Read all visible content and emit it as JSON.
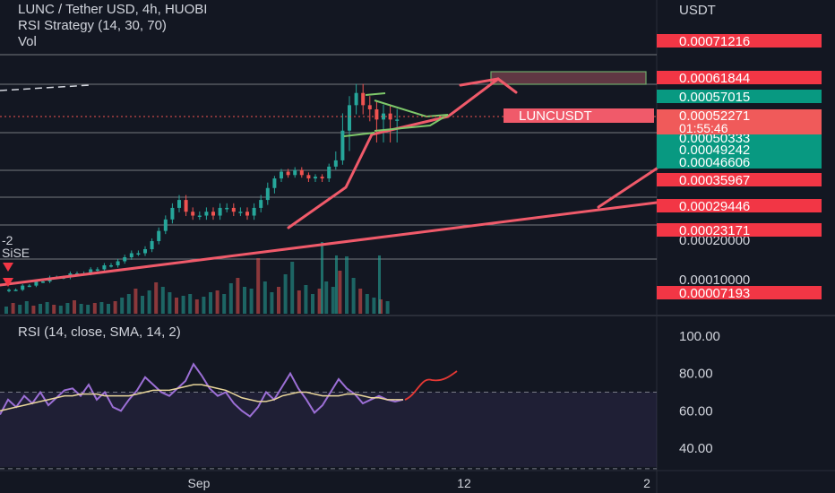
{
  "header": {
    "symbol_line": "LUNC / Tether USD, 4h, HUOBI",
    "strategy_line": "RSI Strategy (14, 30, 70)",
    "volume_line": "Vol"
  },
  "price_scale": {
    "currency": "USDT",
    "ticks": [
      "0.00020000",
      "0.00010000"
    ],
    "badges": [
      {
        "label": "0.00071216",
        "color": "#f23645"
      },
      {
        "label": "0.00061844",
        "color": "#f23645"
      },
      {
        "label": "0.00057015",
        "color": "#089981"
      },
      {
        "label": "0.00050333",
        "color": "#089981"
      },
      {
        "label": "0.00049242",
        "color": "#089981"
      },
      {
        "label": "0.00046606",
        "color": "#089981"
      },
      {
        "label": "0.00035967",
        "color": "#f23645"
      },
      {
        "label": "0.00029446",
        "color": "#f23645"
      },
      {
        "label": "0.00023171",
        "color": "#f23645"
      },
      {
        "label": "0.00007193",
        "color": "#f23645"
      }
    ],
    "last_price": {
      "label": "0.00052271",
      "countdown": "01:55:46",
      "color": "#f05a5a"
    },
    "symbol_tag": "LUNCUSDT"
  },
  "left_labels": {
    "top": "-2",
    "bottom": "SiSE"
  },
  "rsi": {
    "title": "RSI (14, close, SMA, 14, 2)",
    "ticks": [
      "100.00",
      "80.00",
      "60.00",
      "40.00"
    ]
  },
  "time_axis": {
    "labels": [
      "Sep",
      "12",
      "2"
    ]
  },
  "colors": {
    "background": "#131722",
    "up_candle": "#26a69a",
    "down_candle": "#ef5350",
    "trendline": "#f05a6a",
    "rsi_line": "#9c6fd6",
    "rsi_ma": "#e8d59a",
    "triangle": "#7ec86a"
  },
  "chart_data": {
    "type": "candlestick",
    "title": "LUNC / Tether USD, 4h, HUOBI",
    "y_unit": "USDT",
    "horizontal_levels": [
      0.00071216,
      0.00061844,
      0.00057015,
      0.00050333,
      0.00049242,
      0.00046606,
      0.00035967,
      0.00029446,
      0.00023171,
      7.193e-05
    ],
    "last_price": 0.00052271,
    "candles_close": [
      8e-05,
      8e-05,
      9e-05,
      9e-05,
      0.0001,
      0.0001,
      0.00011,
      0.00011,
      0.00011,
      0.00012,
      0.00012,
      0.00012,
      0.00013,
      0.00013,
      0.00014,
      0.00014,
      0.00015,
      0.00016,
      0.00017,
      0.00017,
      0.00018,
      0.0002,
      0.00023,
      0.00026,
      0.00029,
      0.00031,
      0.00028,
      0.00027,
      0.00027,
      0.00028,
      0.00027,
      0.00029,
      0.00029,
      0.00028,
      0.00028,
      0.00027,
      0.00029,
      0.00031,
      0.00034,
      0.00037,
      0.00041,
      0.00039,
      0.00042,
      0.00039,
      0.00037,
      0.00038,
      0.00037,
      0.00044,
      0.00047,
      0.00051,
      0.00055,
      0.00058,
      0.00055,
      0.00054,
      0.00052,
      0.00053,
      0.00052,
      0.00052
    ],
    "rsi": {
      "ylim": [
        30,
        100
      ],
      "overbought": 70,
      "values": [
        58,
        66,
        62,
        68,
        64,
        70,
        63,
        67,
        71,
        72,
        68,
        74,
        66,
        70,
        62,
        60,
        66,
        71,
        78,
        74,
        70,
        68,
        72,
        76,
        85,
        79,
        72,
        68,
        70,
        64,
        60,
        57,
        62,
        70,
        66,
        73,
        80,
        72,
        66,
        59,
        63,
        70,
        77,
        72,
        69,
        64,
        66,
        68,
        66,
        65,
        66
      ],
      "ma": [
        60,
        61,
        62,
        63,
        64,
        65,
        66,
        67,
        68,
        68,
        69,
        69,
        69,
        68,
        68,
        68,
        68,
        69,
        70,
        71,
        71,
        71,
        72,
        73,
        74,
        74,
        73,
        72,
        71,
        69,
        67,
        66,
        65,
        65,
        66,
        68,
        69,
        70,
        70,
        69,
        68,
        68,
        68,
        69,
        69,
        68,
        67,
        67,
        66,
        66,
        66
      ]
    }
  }
}
